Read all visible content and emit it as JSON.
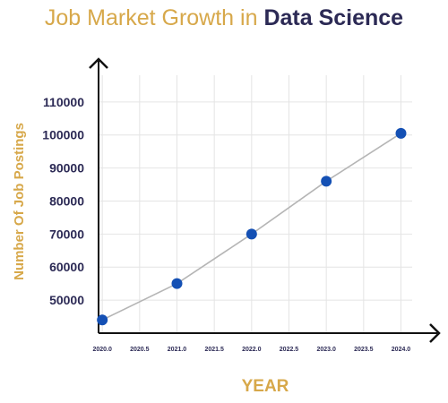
{
  "chart_data": {
    "type": "line",
    "title_part1": "Job Market Growth in ",
    "title_part2": "Data Science",
    "xlabel": "YEAR",
    "ylabel": "Number Of Job Postings",
    "x": [
      2020,
      2021,
      2022,
      2023,
      2024
    ],
    "series": [
      {
        "values": [
          44000,
          55000,
          70000,
          86000,
          100500
        ]
      }
    ],
    "xlim": [
      2019.95,
      2024.15
    ],
    "ylim": [
      40000,
      117000
    ],
    "xticks": [
      2020.0,
      2020.5,
      2021.0,
      2021.5,
      2022.0,
      2022.5,
      2023.0,
      2023.5,
      2024.0
    ],
    "xtick_labels": [
      "2020.0",
      "2020.5",
      "2021.0",
      "2021.5",
      "2022.0",
      "2022.5",
      "2023.0",
      "2023.5",
      "2024.0"
    ],
    "yticks": [
      50000,
      60000,
      70000,
      80000,
      90000,
      100000,
      110000
    ],
    "ytick_labels": [
      "50000",
      "60000",
      "70000",
      "80000",
      "90000",
      "100000",
      "110000"
    ],
    "grid": true,
    "colors": {
      "line": "#b5b5b5",
      "marker": "#1450b4",
      "grid": "#e4e4e4",
      "axis": "#111111",
      "title_accent": "#d7a84a",
      "title_dark": "#2c2a55",
      "tick_text": "#2c2a55"
    }
  }
}
